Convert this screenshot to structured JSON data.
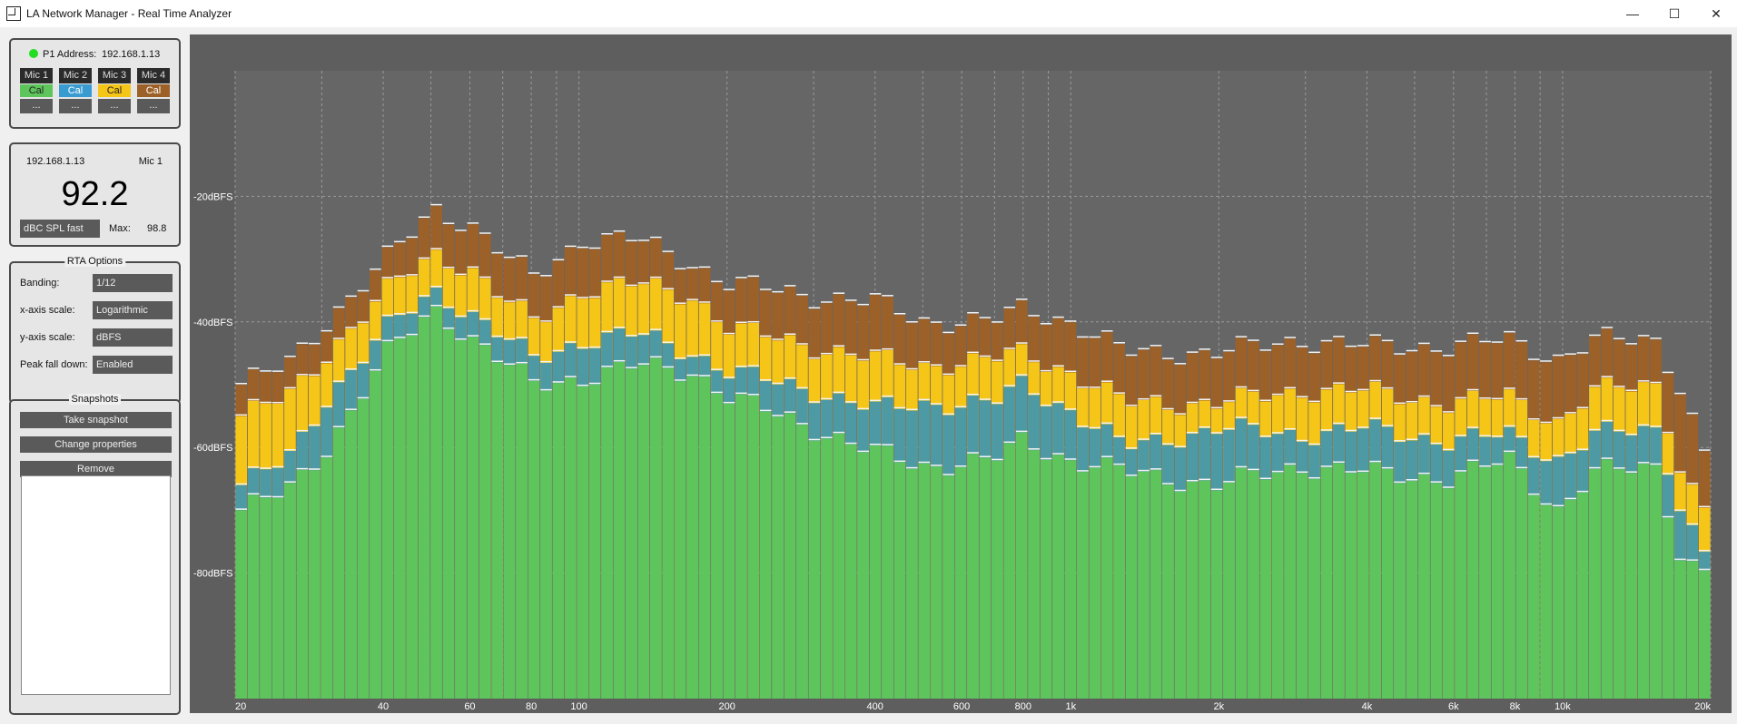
{
  "window": {
    "title": "LA Network Manager - Real Time Analyzer",
    "min": "—",
    "max": "☐",
    "close": "✕"
  },
  "device": {
    "label": "P1 Address:",
    "address": "192.168.1.13",
    "status_color": "#22dd22",
    "mics": [
      {
        "name": "Mic 1",
        "cal": "Cal",
        "color": "#5ec45c",
        "more": "..."
      },
      {
        "name": "Mic 2",
        "cal": "Cal",
        "color": "#3a9bd1",
        "more": "..."
      },
      {
        "name": "Mic 3",
        "cal": "Cal",
        "color": "#f5c518",
        "more": "..."
      },
      {
        "name": "Mic 4",
        "cal": "Cal",
        "color": "#9c6128",
        "more": "..."
      }
    ]
  },
  "meter": {
    "ip": "192.168.1.13",
    "mic": "Mic 1",
    "value": "92.2",
    "weighting": "dBC SPL fast",
    "max_label": "Max:",
    "max_value": "98.8"
  },
  "rta_options": {
    "title": "RTA Options",
    "banding_label": "Banding:",
    "banding": "1/12",
    "xscale_label": "x-axis scale:",
    "xscale": "Logarithmic",
    "yscale_label": "y-axis scale:",
    "yscale": "dBFS",
    "peak_label": "Peak fall down:",
    "peak": "Enabled"
  },
  "snapshots": {
    "title": "Snapshots",
    "take": "Take snapshot",
    "change": "Change properties",
    "remove": "Remove"
  },
  "chart_data": {
    "type": "bar",
    "title": "Real Time Analyzer",
    "xlabel": "",
    "ylabel": "",
    "x_scale": "log",
    "xlim": [
      20,
      20000
    ],
    "ylim": [
      -100,
      0
    ],
    "y_ticks": [
      {
        "value": -20,
        "label": "-20dBFS"
      },
      {
        "value": -40,
        "label": "-40dBFS"
      },
      {
        "value": -60,
        "label": "-60dBFS"
      },
      {
        "value": -80,
        "label": "-80dBFS"
      }
    ],
    "x_ticks": [
      {
        "value": 20,
        "label": "20"
      },
      {
        "value": 40,
        "label": "40"
      },
      {
        "value": 60,
        "label": "60"
      },
      {
        "value": 80,
        "label": "80"
      },
      {
        "value": 100,
        "label": "100"
      },
      {
        "value": 200,
        "label": "200"
      },
      {
        "value": 400,
        "label": "400"
      },
      {
        "value": 600,
        "label": "600"
      },
      {
        "value": 800,
        "label": "800"
      },
      {
        "value": 1000,
        "label": "1k"
      },
      {
        "value": 2000,
        "label": "2k"
      },
      {
        "value": 4000,
        "label": "4k"
      },
      {
        "value": 6000,
        "label": "6k"
      },
      {
        "value": 8000,
        "label": "8k"
      },
      {
        "value": 10000,
        "label": "10k"
      },
      {
        "value": 20000,
        "label": "20k"
      }
    ],
    "anchors_hz": [
      20,
      25,
      30,
      40,
      50,
      60,
      70,
      80,
      100,
      130,
      170,
      200,
      300,
      400,
      500,
      700,
      800,
      1000,
      1300,
      2000,
      3000,
      4000,
      6000,
      8000,
      10000,
      12000,
      16000,
      18000,
      20000
    ],
    "series": [
      {
        "name": "Mic 1",
        "color": "#5ec45c",
        "values": [
          -70,
          -67,
          -60,
          -45,
          -38,
          -43,
          -47,
          -50,
          -49,
          -47,
          -48,
          -52,
          -57,
          -61,
          -63,
          -62,
          -59,
          -62,
          -64,
          -66,
          -63,
          -64,
          -65,
          -62,
          -70,
          -64,
          -63,
          -78,
          -80
        ]
      },
      {
        "name": "Mic 2",
        "color": "#4d9aa4",
        "values": [
          -66,
          -62,
          -52,
          -41,
          -35,
          -39,
          -43,
          -46,
          -43,
          -42,
          -45,
          -48,
          -51,
          -54,
          -53,
          -53,
          -50,
          -54,
          -60,
          -57,
          -58,
          -57,
          -59,
          -58,
          -62,
          -58,
          -57,
          -70,
          -77
        ]
      },
      {
        "name": "Mic 3",
        "color": "#f5c518",
        "values": [
          -55,
          -52,
          -45,
          -35,
          -29,
          -32,
          -37,
          -40,
          -35,
          -34,
          -36,
          -41,
          -44,
          -46,
          -47,
          -46,
          -45,
          -48,
          -53,
          -53,
          -51,
          -51,
          -53,
          -52,
          -56,
          -51,
          -50,
          -64,
          -70
        ]
      },
      {
        "name": "Mic 4",
        "color": "#9c6128",
        "values": [
          -50,
          -47,
          -40,
          -30,
          -22,
          -25,
          -30,
          -33,
          -27,
          -27,
          -31,
          -34,
          -36,
          -37,
          -40,
          -40,
          -38,
          -40,
          -45,
          -45,
          -43,
          -44,
          -44,
          -43,
          -46,
          -43,
          -43,
          -51,
          -61
        ]
      }
    ]
  }
}
